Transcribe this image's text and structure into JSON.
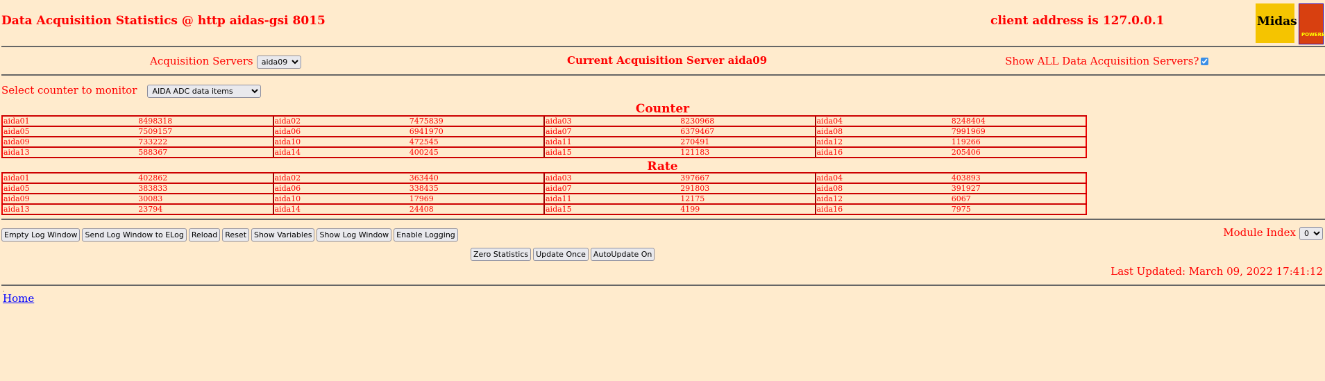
{
  "header": {
    "title": "Data Acquisition Statistics @ http aidas-gsi 8015",
    "client_address": "client address is 127.0.0.1",
    "logo_midas": "Midas",
    "logo_tcl": "TCL POWERED"
  },
  "servers": {
    "label": "Acquisition Servers",
    "selected": "aida09",
    "current": "Current Acquisition Server aida09",
    "show_all_label": "Show ALL Data Acquisition Servers?",
    "show_all_checked": true
  },
  "counter_select": {
    "label": "Select counter to monitor",
    "selected": "AIDA ADC data items"
  },
  "counter": {
    "heading": "Counter",
    "rows": [
      [
        [
          "aida01",
          "8498318"
        ],
        [
          "aida02",
          "7475839"
        ],
        [
          "aida03",
          "8230968"
        ],
        [
          "aida04",
          "8248404"
        ]
      ],
      [
        [
          "aida05",
          "7509157"
        ],
        [
          "aida06",
          "6941970"
        ],
        [
          "aida07",
          "6379467"
        ],
        [
          "aida08",
          "7991969"
        ]
      ],
      [
        [
          "aida09",
          "733222"
        ],
        [
          "aida10",
          "472545"
        ],
        [
          "aida11",
          "270491"
        ],
        [
          "aida12",
          "119266"
        ]
      ],
      [
        [
          "aida13",
          "588367"
        ],
        [
          "aida14",
          "400245"
        ],
        [
          "aida15",
          "121183"
        ],
        [
          "aida16",
          "205406"
        ]
      ]
    ]
  },
  "rate": {
    "heading": "Rate",
    "rows": [
      [
        [
          "aida01",
          "402862"
        ],
        [
          "aida02",
          "363440"
        ],
        [
          "aida03",
          "397667"
        ],
        [
          "aida04",
          "403893"
        ]
      ],
      [
        [
          "aida05",
          "383833"
        ],
        [
          "aida06",
          "338435"
        ],
        [
          "aida07",
          "291803"
        ],
        [
          "aida08",
          "391927"
        ]
      ],
      [
        [
          "aida09",
          "30083"
        ],
        [
          "aida10",
          "17969"
        ],
        [
          "aida11",
          "12175"
        ],
        [
          "aida12",
          "6067"
        ]
      ],
      [
        [
          "aida13",
          "23794"
        ],
        [
          "aida14",
          "24408"
        ],
        [
          "aida15",
          "4199"
        ],
        [
          "aida16",
          "7975"
        ]
      ]
    ]
  },
  "toolbar": {
    "buttons": [
      "Empty Log Window",
      "Send Log Window to ELog",
      "Reload",
      "Reset",
      "Show Variables",
      "Show Log Window",
      "Enable Logging"
    ],
    "module_index_label": "Module Index",
    "module_index": "0"
  },
  "controls": {
    "buttons": [
      "Zero Statistics",
      "Update Once",
      "AutoUpdate On"
    ]
  },
  "last_updated": "Last Updated: March 09, 2022 17:41:12",
  "footer": {
    "home": "Home"
  }
}
